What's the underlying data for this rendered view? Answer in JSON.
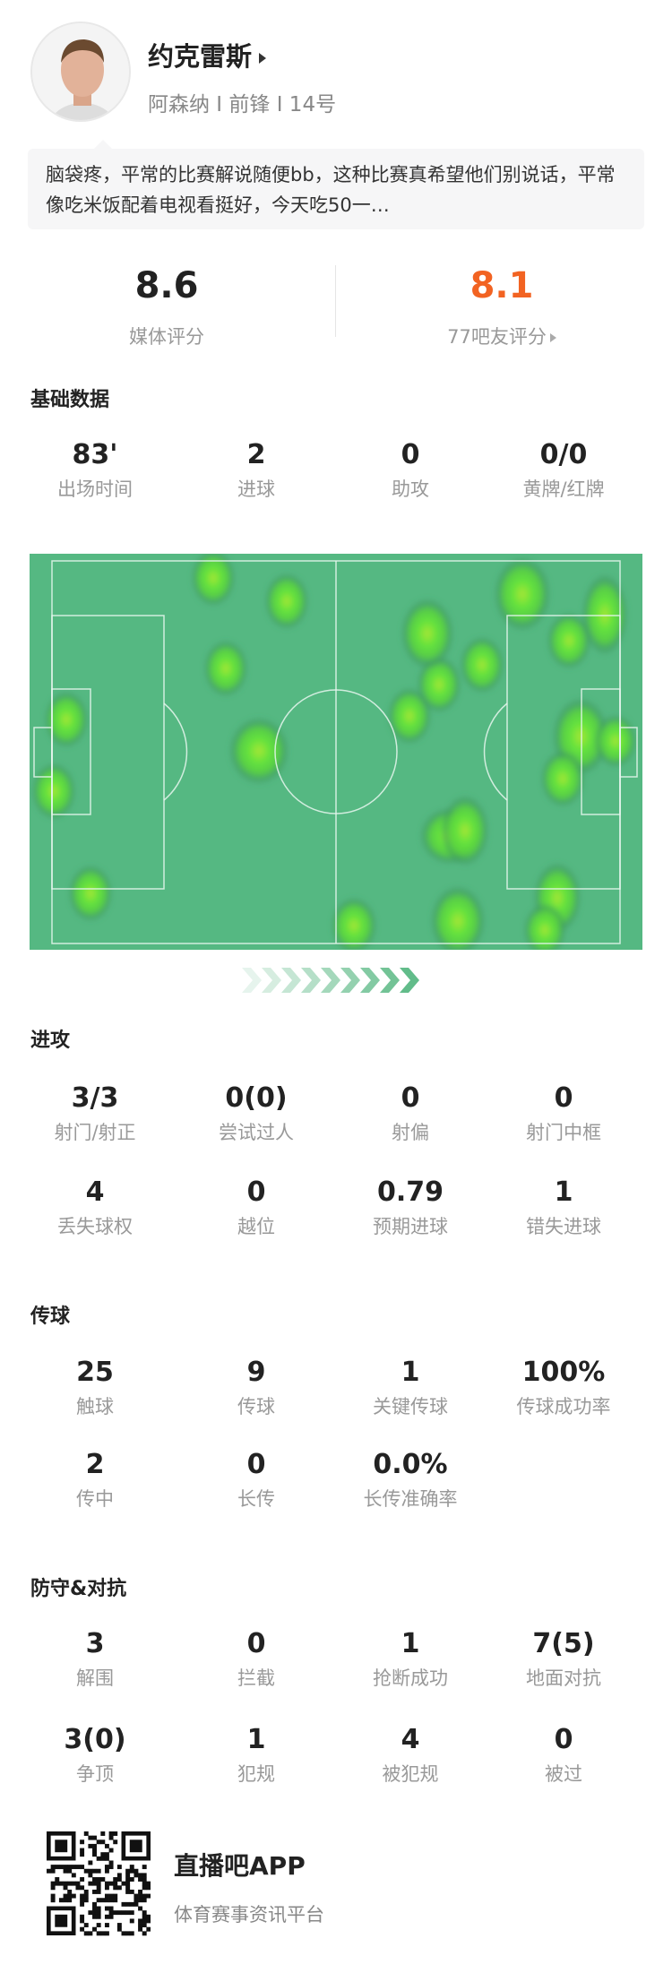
{
  "player": {
    "name": "约克雷斯",
    "info": "阿森纳 I 前锋 I 14号"
  },
  "comment": "脑袋疼，平常的比赛解说随便bb，这种比赛真希望他们别说话，平常像吃米饭配着电视看挺好，今天吃50一…",
  "ratings": {
    "media_value": "8.6",
    "media_label": "媒体评分",
    "fan_value": "8.1",
    "fan_label": "77吧友评分",
    "fan_color": "#f26322"
  },
  "basic": {
    "title": "基础数据",
    "stats": [
      {
        "v": "83'",
        "l": "出场时间"
      },
      {
        "v": "2",
        "l": "进球"
      },
      {
        "v": "0",
        "l": "助攻"
      },
      {
        "v": "0/0",
        "l": "黄牌/红牌"
      }
    ]
  },
  "heatmap": {
    "pitch_color": "#55b882",
    "attack_direction": "right"
  },
  "attack": {
    "title": "进攻",
    "stats": [
      {
        "v": "3/3",
        "l": "射门/射正"
      },
      {
        "v": "0(0)",
        "l": "尝试过人"
      },
      {
        "v": "0",
        "l": "射偏"
      },
      {
        "v": "0",
        "l": "射门中框"
      },
      {
        "v": "4",
        "l": "丢失球权"
      },
      {
        "v": "0",
        "l": "越位"
      },
      {
        "v": "0.79",
        "l": "预期进球"
      },
      {
        "v": "1",
        "l": "错失进球"
      }
    ]
  },
  "passing": {
    "title": "传球",
    "stats": [
      {
        "v": "25",
        "l": "触球"
      },
      {
        "v": "9",
        "l": "传球"
      },
      {
        "v": "1",
        "l": "关键传球"
      },
      {
        "v": "100%",
        "l": "传球成功率"
      },
      {
        "v": "2",
        "l": "传中"
      },
      {
        "v": "0",
        "l": "长传"
      },
      {
        "v": "0.0%",
        "l": "长传准确率"
      }
    ]
  },
  "defense": {
    "title": "防守&对抗",
    "stats": [
      {
        "v": "3",
        "l": "解围"
      },
      {
        "v": "0",
        "l": "拦截"
      },
      {
        "v": "1",
        "l": "抢断成功"
      },
      {
        "v": "7(5)",
        "l": "地面对抗"
      },
      {
        "v": "3(0)",
        "l": "争顶"
      },
      {
        "v": "1",
        "l": "犯规"
      },
      {
        "v": "4",
        "l": "被犯规"
      },
      {
        "v": "0",
        "l": "被过"
      }
    ]
  },
  "footer": {
    "app": "直播吧APP",
    "tagline": "体育赛事资讯平台"
  }
}
